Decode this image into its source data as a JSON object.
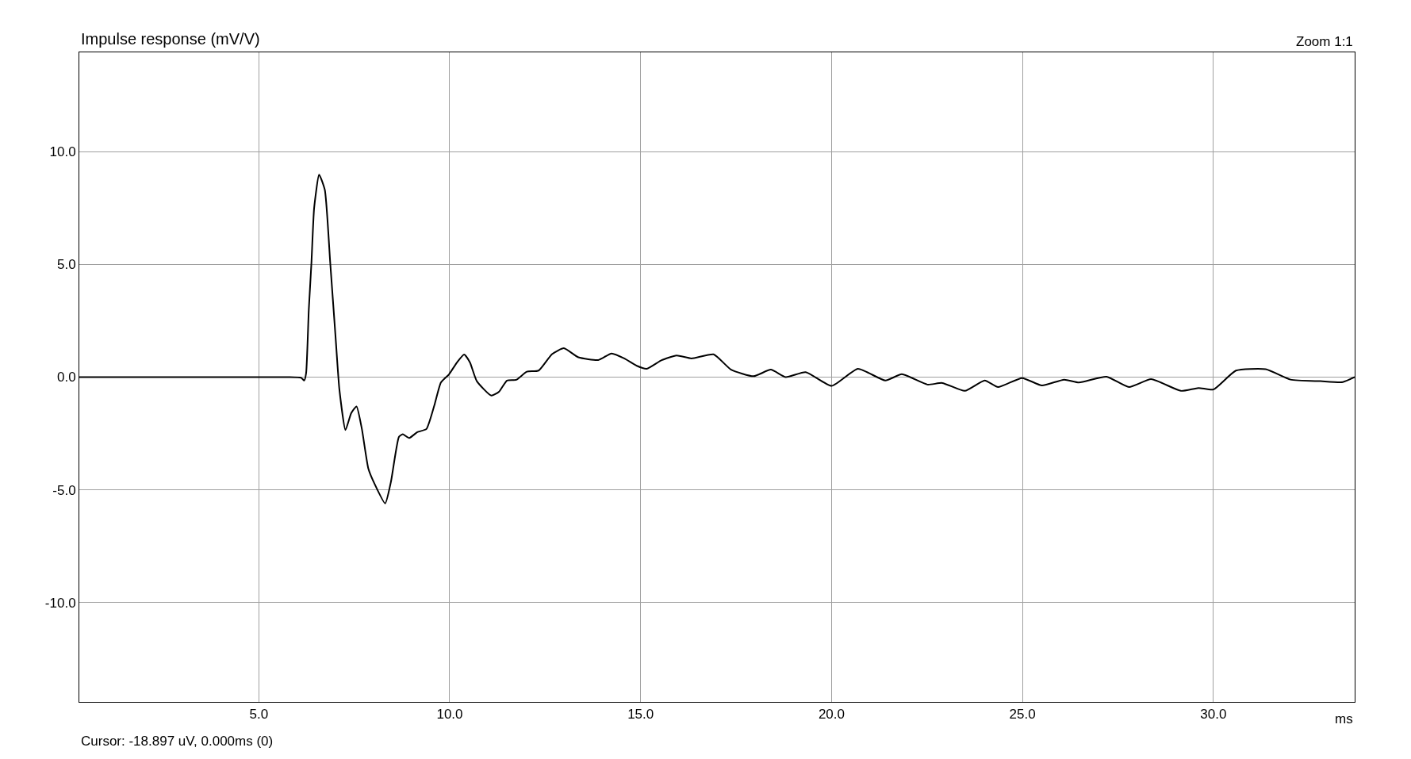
{
  "chart_data": {
    "type": "line",
    "title": "Impulse response (mV/V)",
    "xlabel": "ms",
    "annotations": [
      "Zoom 1:1",
      "Cursor: -18.897 uV, 0.000ms (0)"
    ],
    "series": [
      {
        "color": "#000000",
        "x": [
          0.3,
          3.0,
          5.76,
          6.11,
          6.19,
          6.24,
          6.31,
          6.38,
          6.45,
          6.58,
          6.73,
          6.87,
          7.01,
          7.11,
          7.27,
          7.42,
          7.56,
          7.7,
          7.87,
          8.04,
          8.31,
          8.46,
          8.67,
          8.77,
          8.94,
          9.15,
          9.39,
          9.6,
          9.77,
          9.98,
          10.19,
          10.38,
          10.53,
          10.71,
          11.09,
          11.29,
          11.5,
          11.74,
          12.02,
          12.33,
          12.68,
          12.99,
          13.37,
          13.89,
          14.24,
          14.57,
          14.9,
          15.16,
          15.55,
          15.94,
          16.33,
          16.91,
          17.37,
          17.96,
          18.41,
          18.8,
          19.32,
          20.0,
          20.69,
          21.41,
          21.84,
          22.51,
          22.9,
          23.49,
          24.01,
          24.36,
          24.99,
          25.51,
          26.09,
          26.48,
          27.2,
          27.79,
          28.37,
          29.15,
          29.61,
          30.0,
          30.59,
          31.37,
          32.02,
          32.8,
          33.39,
          33.7
        ],
        "values": [
          0,
          0,
          0,
          -0.03,
          -0.15,
          0.18,
          3.0,
          5.1,
          7.5,
          8.98,
          8.3,
          5.1,
          1.8,
          -0.53,
          -2.35,
          -1.6,
          -1.3,
          -2.3,
          -4.06,
          -4.76,
          -5.6,
          -4.65,
          -2.65,
          -2.53,
          -2.7,
          -2.44,
          -2.3,
          -1.24,
          -0.24,
          0.12,
          0.65,
          1.0,
          0.65,
          -0.18,
          -0.82,
          -0.65,
          -0.15,
          -0.12,
          0.24,
          0.29,
          1.02,
          1.28,
          0.88,
          0.76,
          1.05,
          0.83,
          0.5,
          0.37,
          0.75,
          0.96,
          0.83,
          1.01,
          0.33,
          0.04,
          0.33,
          0,
          0.22,
          -0.39,
          0.37,
          -0.15,
          0.13,
          -0.33,
          -0.26,
          -0.61,
          -0.15,
          -0.44,
          -0.04,
          -0.37,
          -0.11,
          -0.24,
          0.02,
          -0.44,
          -0.09,
          -0.61,
          -0.48,
          -0.55,
          0.29,
          0.35,
          -0.11,
          -0.18,
          -0.22,
          0
        ]
      }
    ],
    "xlim": [
      0.3,
      33.7
    ],
    "ylim": [
      -14.4,
      14.4
    ],
    "xticks": [
      {
        "value": 5,
        "label": "5.0"
      },
      {
        "value": 10,
        "label": "10.0"
      },
      {
        "value": 15,
        "label": "15.0"
      },
      {
        "value": 20,
        "label": "20.0"
      },
      {
        "value": 25,
        "label": "25.0"
      },
      {
        "value": 30,
        "label": "30.0"
      }
    ],
    "yticks": [
      {
        "value": 10,
        "label": "10.0"
      },
      {
        "value": 5,
        "label": "5.0"
      },
      {
        "value": 0,
        "label": "0.0"
      },
      {
        "value": -5,
        "label": "-5.0"
      },
      {
        "value": -10,
        "label": "-10.0"
      }
    ],
    "grid": true,
    "marker": "none",
    "line_style": "solid"
  }
}
